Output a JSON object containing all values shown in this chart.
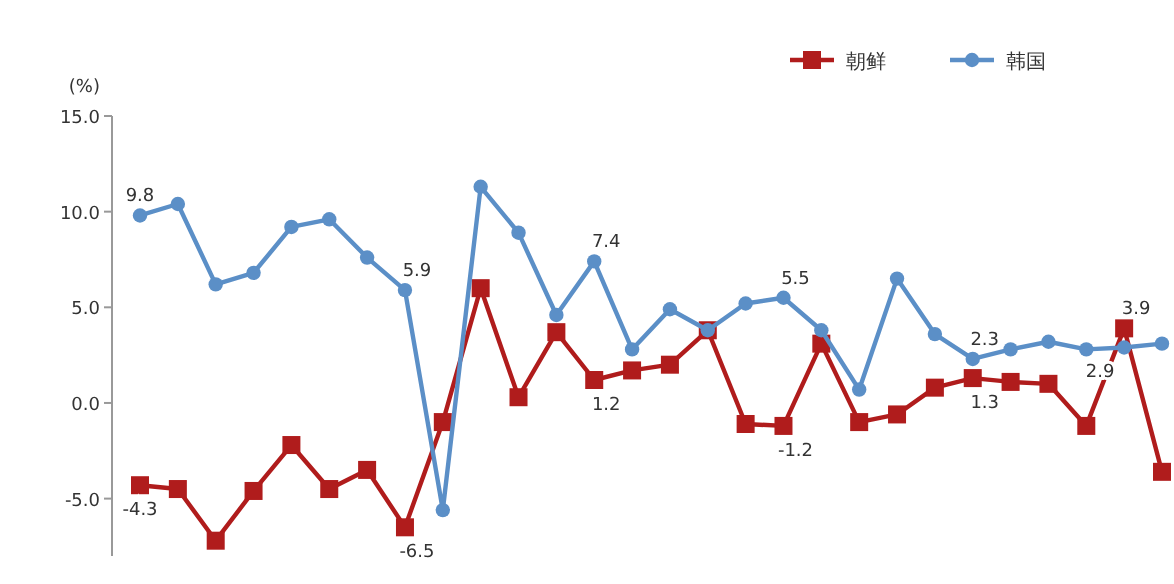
{
  "chart_data": {
    "type": "line",
    "ylabel": "(%)",
    "categories": [
      null,
      null,
      null,
      null,
      null,
      null,
      null,
      null,
      null,
      null,
      null,
      null,
      null,
      null,
      null,
      null,
      null,
      null,
      null,
      null,
      null,
      null,
      null,
      null,
      null,
      null,
      null,
      null
    ],
    "ylim": [
      -8,
      15
    ],
    "yticks": [
      {
        "value": 15,
        "label": "15.0"
      },
      {
        "value": 10,
        "label": "10.0"
      },
      {
        "value": 5,
        "label": "5.0"
      },
      {
        "value": 0,
        "label": "0.0"
      },
      {
        "value": -5,
        "label": "-5.0"
      }
    ],
    "grid": false,
    "legend": "top right",
    "series": [
      {
        "name": "朝鲜",
        "color": "#b01c1c",
        "marker": "square",
        "values": [
          -4.3,
          -4.5,
          -7.2,
          -4.6,
          -2.2,
          -4.5,
          -3.5,
          -6.5,
          -1.0,
          6.0,
          0.3,
          3.7,
          1.2,
          1.7,
          2.0,
          3.8,
          -1.1,
          -1.2,
          3.1,
          -1.0,
          -0.6,
          0.8,
          1.3,
          1.1,
          1.0,
          -1.2,
          3.9,
          -3.6
        ],
        "value_labels": [
          "-4.3",
          null,
          null,
          null,
          null,
          null,
          null,
          "-6.5",
          null,
          null,
          null,
          null,
          "1.2",
          null,
          null,
          null,
          null,
          "-1.2",
          null,
          null,
          null,
          null,
          "1.3",
          null,
          null,
          null,
          "3.9",
          null
        ]
      },
      {
        "name": "韩国",
        "color": "#5b8fc7",
        "marker": "circle",
        "values": [
          9.8,
          10.4,
          6.2,
          6.8,
          9.2,
          9.6,
          7.6,
          5.9,
          -5.6,
          11.3,
          8.9,
          4.6,
          7.4,
          2.8,
          4.9,
          3.8,
          5.2,
          5.5,
          3.8,
          0.7,
          6.5,
          3.6,
          2.3,
          2.8,
          3.2,
          2.8,
          2.9,
          3.1
        ],
        "value_labels": [
          "9.8",
          null,
          null,
          null,
          null,
          null,
          null,
          "5.9",
          null,
          null,
          null,
          null,
          "7.4",
          null,
          null,
          null,
          null,
          "5.5",
          null,
          null,
          null,
          null,
          "2.3",
          null,
          null,
          null,
          "2.9",
          null
        ]
      }
    ]
  }
}
